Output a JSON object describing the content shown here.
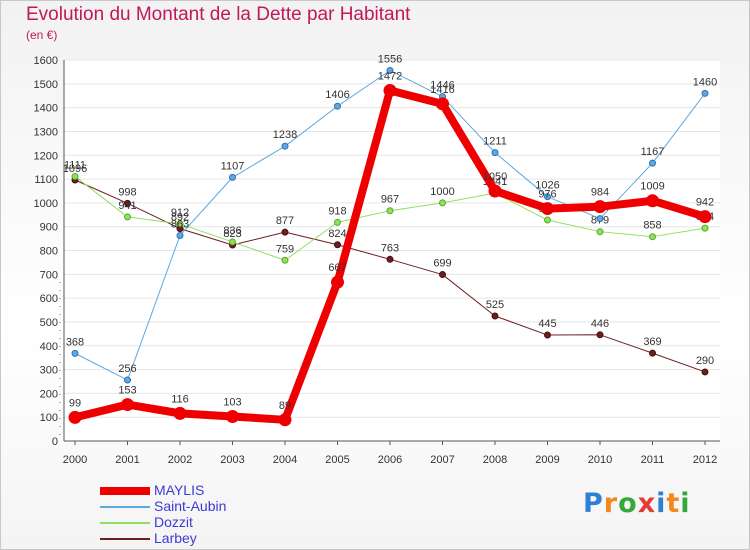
{
  "header": {
    "title": "Evolution du Montant de la Dette par Habitant",
    "unit": "(en €)"
  },
  "brand": {
    "text": "Proxiti",
    "letter_colors": [
      "#2e7fd6",
      "#f08a1c",
      "#36a83a",
      "#e53935",
      "#2e7fd6",
      "#f08a1c",
      "#36a83a"
    ]
  },
  "chart_data": {
    "type": "line",
    "title": "Evolution du Montant de la Dette par Habitant",
    "subtitle": "(en €)",
    "xlabel": "",
    "ylabel": "",
    "x": [
      "2000",
      "2001",
      "2002",
      "2003",
      "2004",
      "2005",
      "2006",
      "2007",
      "2008",
      "2009",
      "2010",
      "2011",
      "2012"
    ],
    "ylim": [
      0,
      1600
    ],
    "yticks": [
      0,
      100,
      200,
      300,
      400,
      500,
      600,
      700,
      800,
      900,
      1000,
      1100,
      1200,
      1300,
      1400,
      1500,
      1600
    ],
    "grid": "horizontal",
    "legend_position": "bottom-left",
    "series": [
      {
        "name": "Larbey",
        "color": "#6b1f1f",
        "values": [
          1096,
          998,
          892,
          823,
          877,
          824,
          763,
          699,
          525,
          445,
          446,
          369,
          290
        ]
      },
      {
        "name": "Dozzit",
        "color": "#90e060",
        "values": [
          1111,
          941,
          912,
          836,
          759,
          918,
          967,
          1000,
          1041,
          928,
          879,
          858,
          894
        ]
      },
      {
        "name": "Saint-Aubin",
        "color": "#5fa8e0",
        "values": [
          368,
          256,
          863,
          1107,
          1238,
          1406,
          1556,
          1446,
          1211,
          1026,
          934,
          1167,
          1460
        ]
      },
      {
        "name": "MAYLIS",
        "color": "#ee0000",
        "values": [
          99,
          153,
          116,
          103,
          89,
          667,
          1472,
          1416,
          1050,
          976,
          984,
          1009,
          942
        ]
      }
    ],
    "legend_order": [
      "MAYLIS",
      "Saint-Aubin",
      "Dozzit",
      "Larbey"
    ]
  }
}
